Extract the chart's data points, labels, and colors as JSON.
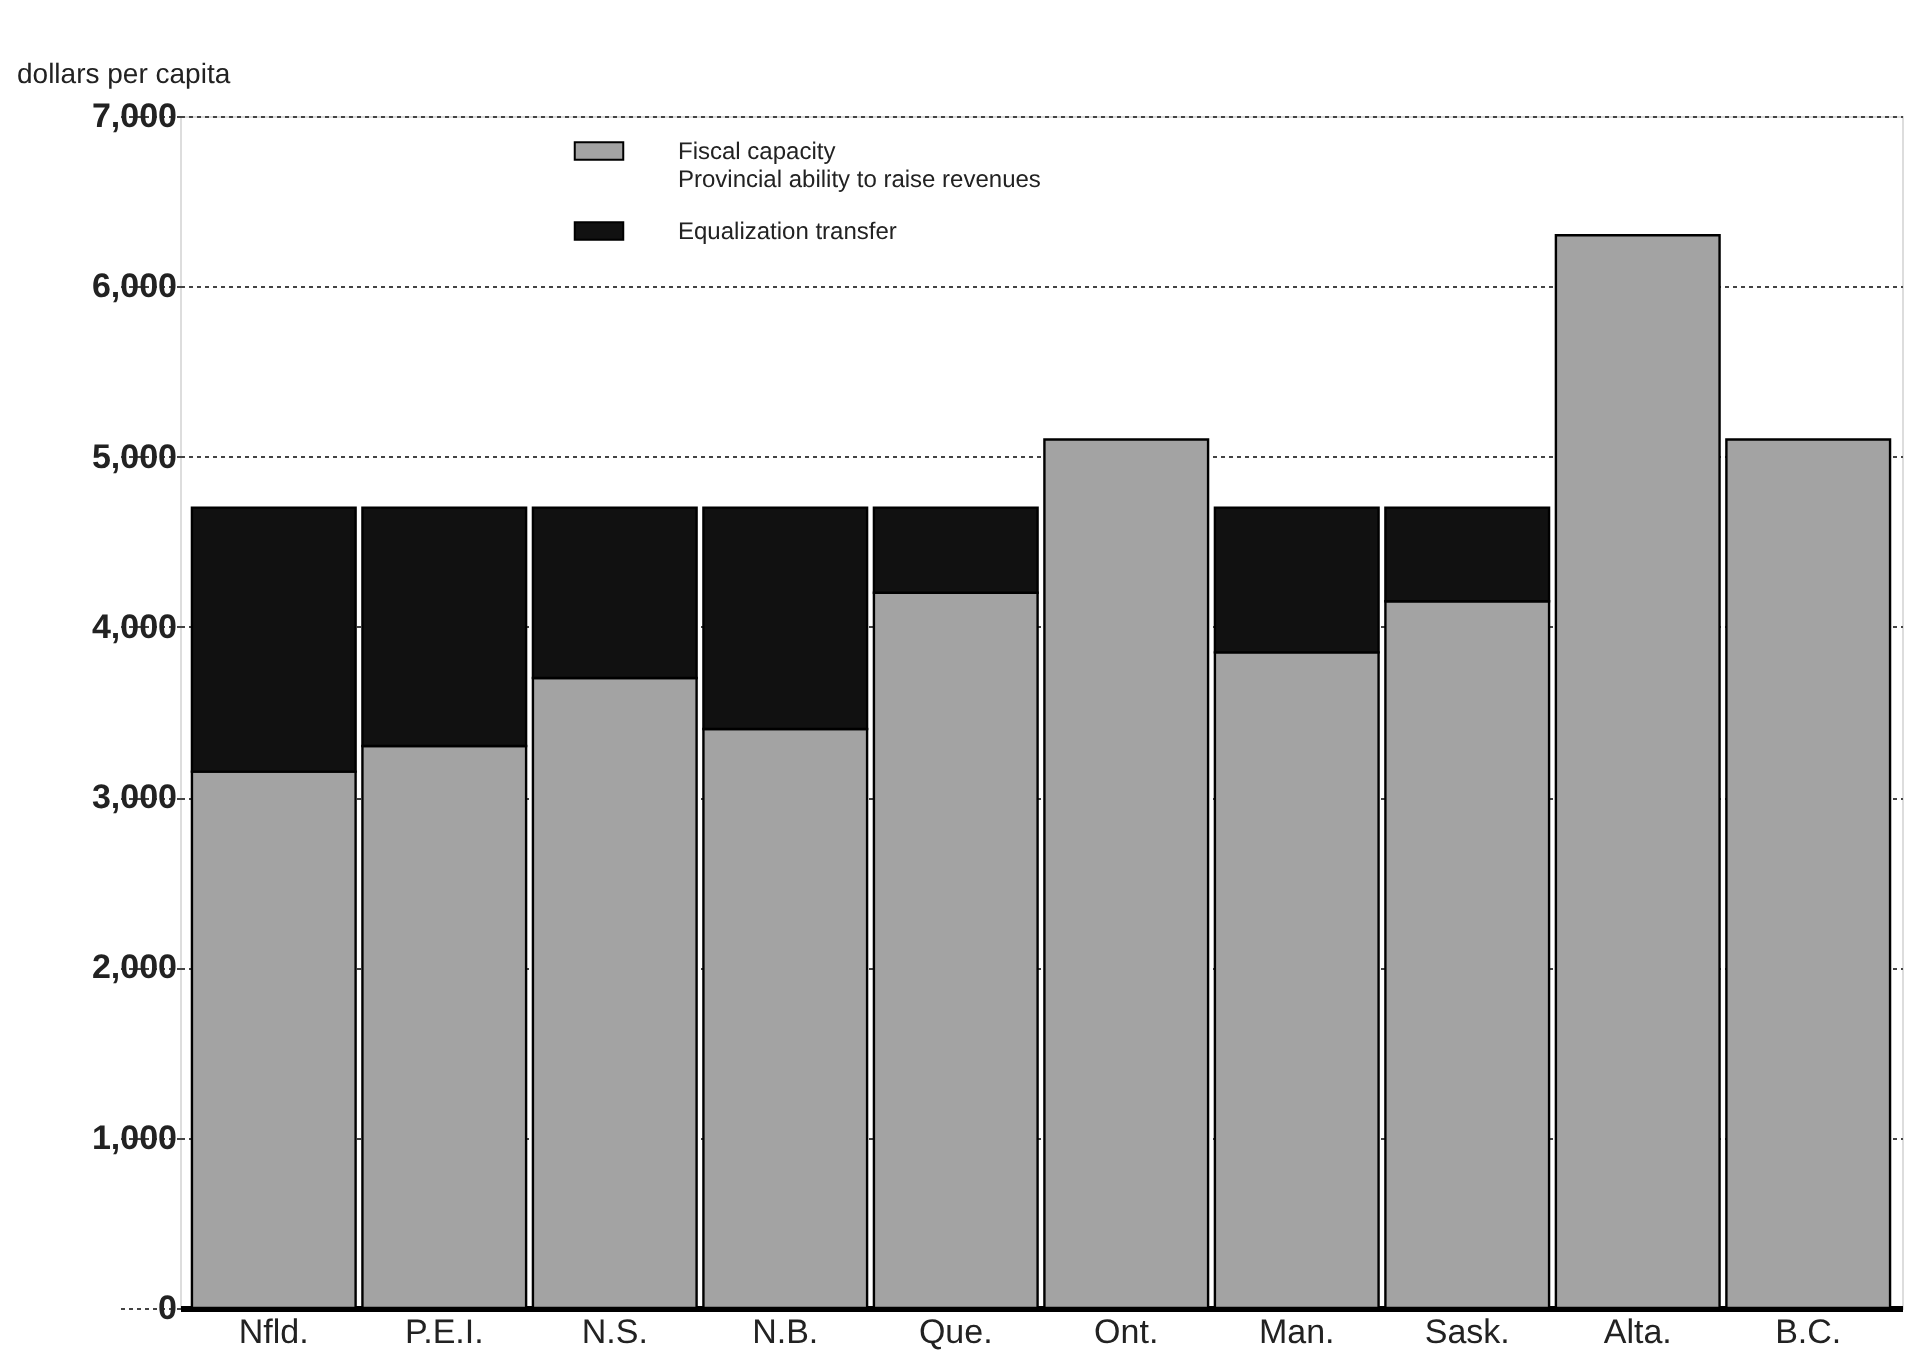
{
  "chart_data": {
    "type": "bar",
    "stacked": true,
    "ylabel": "dollars per capita",
    "categories": [
      "Nfld.",
      "P.E.I.",
      "N.S.",
      "N.B.",
      "Que.",
      "Ont.",
      "Man.",
      "Sask.",
      "Alta.",
      "B.C."
    ],
    "series": [
      {
        "name": "Fiscal capacity\nProvincial ability to raise revenues",
        "color": "#a3a3a3",
        "values": [
          3150,
          3300,
          3700,
          3400,
          4200,
          5100,
          3850,
          4150,
          6300,
          5100
        ]
      },
      {
        "name": "Equalization transfer",
        "color": "#111111",
        "values": [
          1550,
          1400,
          1000,
          1300,
          500,
          null,
          850,
          550,
          null,
          null
        ]
      }
    ],
    "ylim": [
      0,
      7000
    ],
    "yticks": [
      0,
      {
        "value": 1000,
        "label": "1,000"
      },
      {
        "value": 2000,
        "label": "2,000"
      },
      {
        "value": 3000,
        "label": "3,000"
      },
      {
        "value": 4000,
        "label": "4,000"
      },
      {
        "value": 5000,
        "label": "5,000"
      },
      {
        "value": 6000,
        "label": "6,000"
      },
      {
        "value": 7000,
        "label": "7,000"
      }
    ],
    "grid": "y",
    "legend": "top"
  }
}
